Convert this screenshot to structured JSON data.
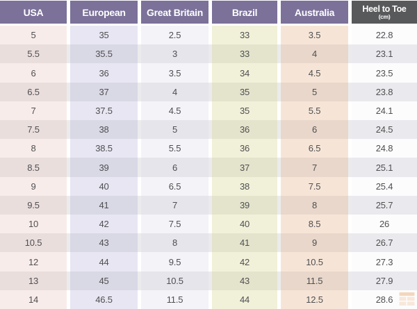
{
  "chart_data": {
    "type": "table",
    "columns": [
      "USA",
      "European",
      "Great Britain",
      "Brazil",
      "Australia",
      "Heel to Toe (cm)"
    ],
    "rows": [
      [
        "5",
        "35",
        "2.5",
        "33",
        "3.5",
        "22.8"
      ],
      [
        "5.5",
        "35.5",
        "3",
        "33",
        "4",
        "23.1"
      ],
      [
        "6",
        "36",
        "3.5",
        "34",
        "4.5",
        "23.5"
      ],
      [
        "6.5",
        "37",
        "4",
        "35",
        "5",
        "23.8"
      ],
      [
        "7",
        "37.5",
        "4.5",
        "35",
        "5.5",
        "24.1"
      ],
      [
        "7.5",
        "38",
        "5",
        "36",
        "6",
        "24.5"
      ],
      [
        "8",
        "38.5",
        "5.5",
        "36",
        "6.5",
        "24.8"
      ],
      [
        "8.5",
        "39",
        "6",
        "37",
        "7",
        "25.1"
      ],
      [
        "9",
        "40",
        "6.5",
        "38",
        "7.5",
        "25.4"
      ],
      [
        "9.5",
        "41",
        "7",
        "39",
        "8",
        "25.7"
      ],
      [
        "10",
        "42",
        "7.5",
        "40",
        "8.5",
        "26"
      ],
      [
        "10.5",
        "43",
        "8",
        "41",
        "9",
        "26.7"
      ],
      [
        "12",
        "44",
        "9.5",
        "42",
        "10.5",
        "27.3"
      ],
      [
        "13",
        "45",
        "10.5",
        "43",
        "11.5",
        "27.9"
      ],
      [
        "14",
        "46.5",
        "11.5",
        "44",
        "12.5",
        "28.6"
      ]
    ]
  },
  "header": {
    "columns": [
      {
        "label": "USA",
        "bg": "#7b7199"
      },
      {
        "label": "European",
        "bg": "#7b7199"
      },
      {
        "label": "Great Britain",
        "bg": "#7b7199"
      },
      {
        "label": "Brazil",
        "bg": "#7b7199"
      },
      {
        "label": "Australia",
        "bg": "#7b7199"
      },
      {
        "label": "Heel to Toe",
        "sublabel": "(cm)",
        "bg": "#58595b"
      }
    ]
  },
  "column_tints": [
    {
      "light": "#f8ecea",
      "dark": "#eadedd"
    },
    {
      "light": "#e7e6f2",
      "dark": "#d9d8e5"
    },
    {
      "light": "#f3f3f8",
      "dark": "#e5e5eb"
    },
    {
      "light": "#f1f1d9",
      "dark": "#e4e4cd"
    },
    {
      "light": "#f6e5d7",
      "dark": "#e8d7ca"
    },
    {
      "light": "#fcfcfd",
      "dark": "#eaeaee"
    }
  ],
  "colors": {
    "header_purple": "#7b7199",
    "header_dark": "#58595b",
    "row_stripe": "#ebebed",
    "cell_text": "#4f4f51",
    "header_text": "#ffffff",
    "watermark_orange": "#e08f3c",
    "background": "#ffffff"
  }
}
